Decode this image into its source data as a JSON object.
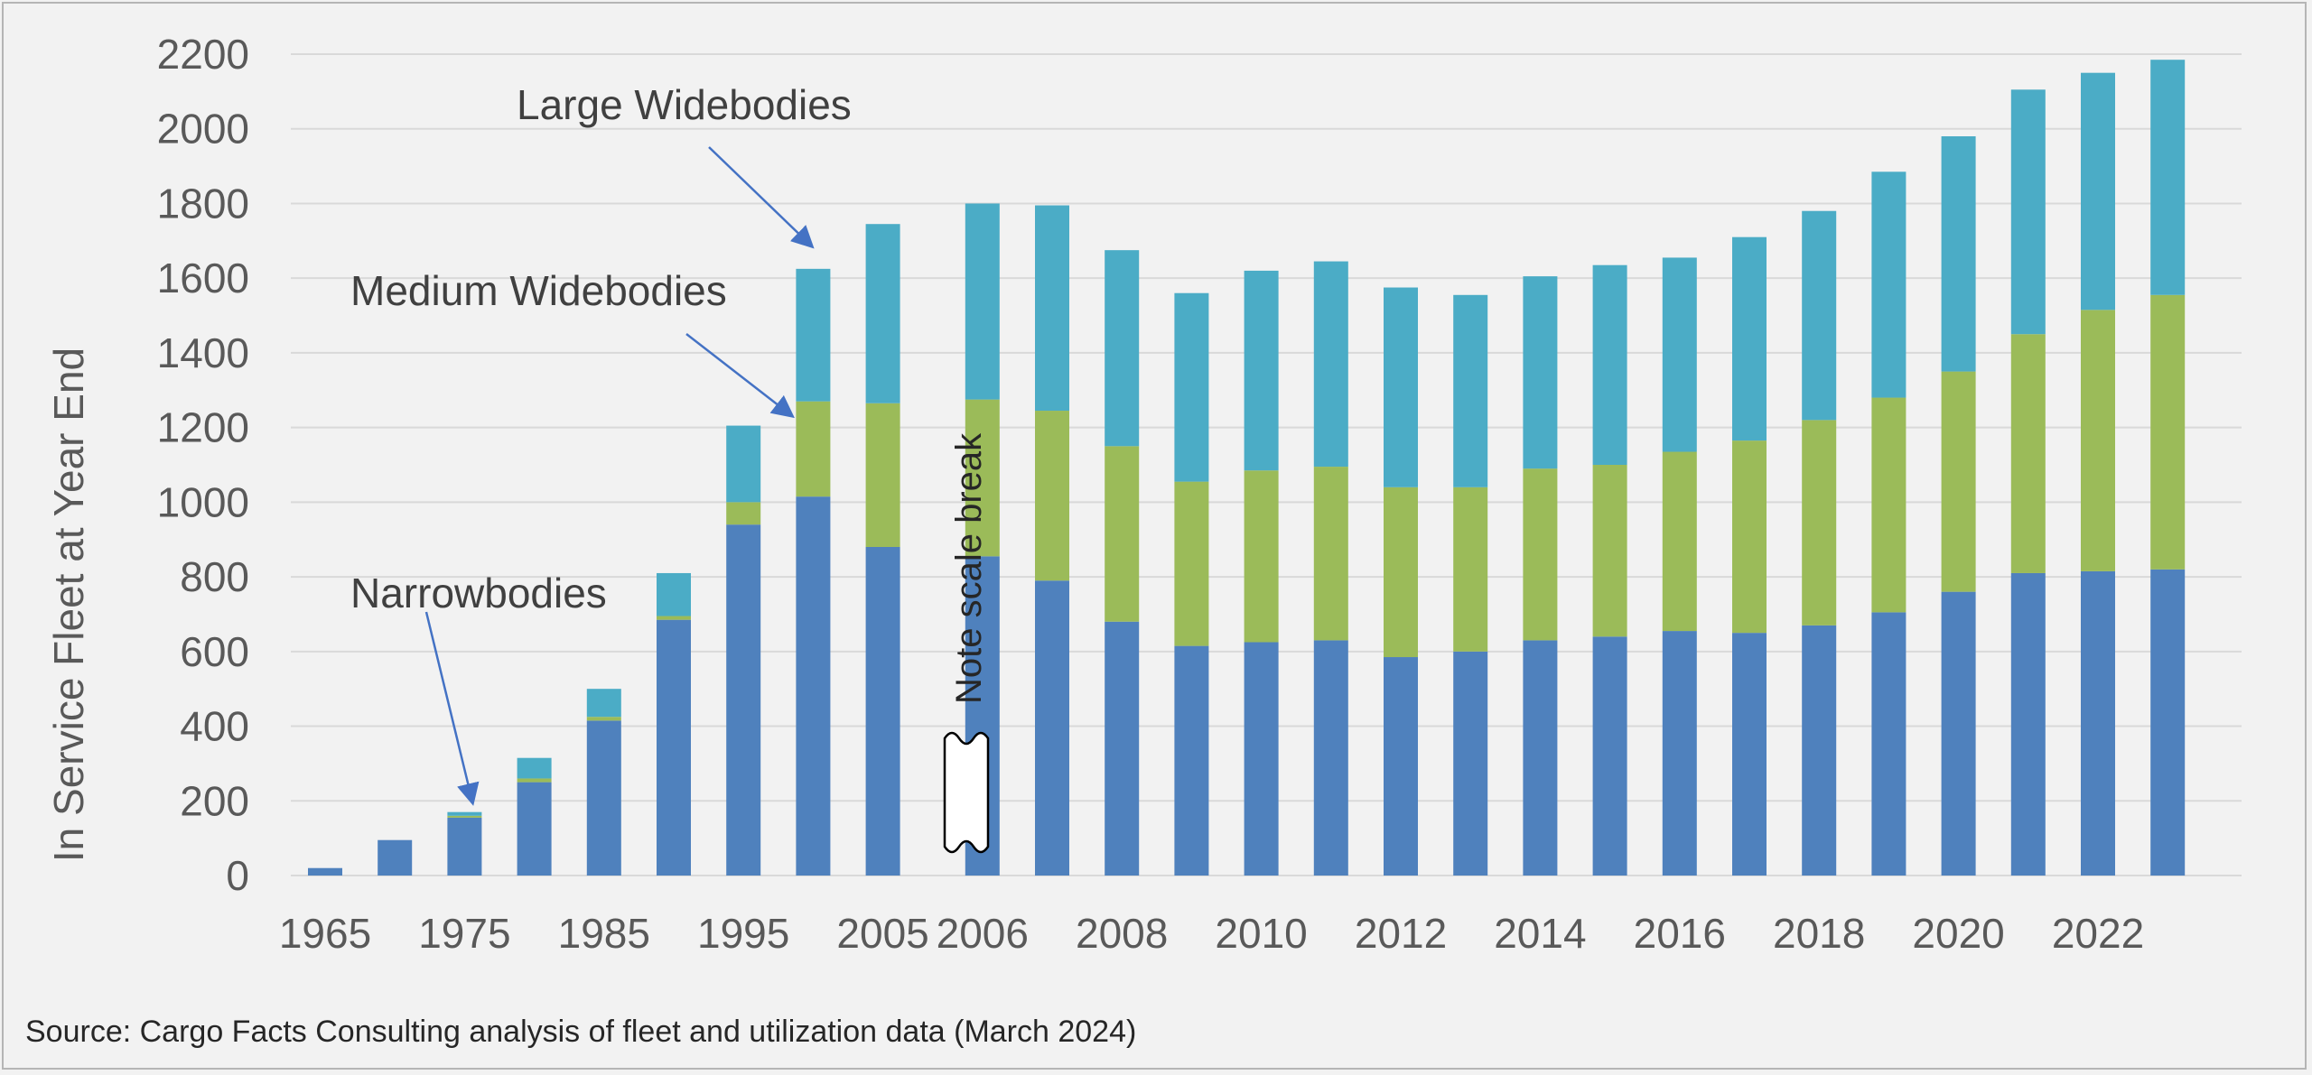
{
  "chart_data": {
    "type": "bar",
    "stacked": true,
    "ylabel": "In Service Fleet at Year End",
    "ylim": [
      0,
      2200
    ],
    "yticks": [
      0,
      200,
      400,
      600,
      800,
      1000,
      1200,
      1400,
      1600,
      1800,
      2000,
      2200
    ],
    "grid": true,
    "categories": [
      "1965",
      "1970",
      "1975",
      "1980",
      "1985",
      "1990",
      "1995",
      "2000",
      "2005",
      "2006",
      "2007",
      "2008",
      "2009",
      "2010",
      "2011",
      "2012",
      "2013",
      "2014",
      "2015",
      "2016",
      "2017",
      "2018",
      "2019",
      "2020",
      "2021",
      "2022",
      "2023"
    ],
    "xtick_labels": [
      "1965",
      "1975",
      "1985",
      "1995",
      "2005",
      "2006",
      "2008",
      "2010",
      "2012",
      "2014",
      "2016",
      "2018",
      "2020",
      "2022"
    ],
    "series": [
      {
        "name": "Narrowbodies",
        "color": "#4f81bd",
        "values": [
          20,
          95,
          155,
          250,
          415,
          685,
          940,
          1015,
          880,
          855,
          790,
          680,
          615,
          625,
          630,
          585,
          600,
          630,
          640,
          655,
          650,
          670,
          705,
          760,
          810,
          815,
          820
        ]
      },
      {
        "name": "Medium Widebodies",
        "color": "#9bbb59",
        "values": [
          0,
          0,
          5,
          10,
          10,
          10,
          60,
          255,
          385,
          420,
          455,
          470,
          440,
          460,
          465,
          455,
          440,
          460,
          460,
          480,
          515,
          550,
          575,
          590,
          640,
          700,
          735
        ]
      },
      {
        "name": "Large Widebodies",
        "color": "#4bacc6",
        "values": [
          0,
          0,
          10,
          55,
          75,
          115,
          205,
          355,
          480,
          525,
          550,
          525,
          505,
          535,
          550,
          535,
          515,
          515,
          535,
          520,
          545,
          560,
          605,
          630,
          655,
          635,
          630
        ]
      }
    ],
    "annotations": [
      "Large Widebodies",
      "Medium Widebodies",
      "Narrowbodies",
      "Note scale break"
    ]
  },
  "source": "Source: Cargo Facts Consulting analysis of fleet and utilization data (March 2024)"
}
